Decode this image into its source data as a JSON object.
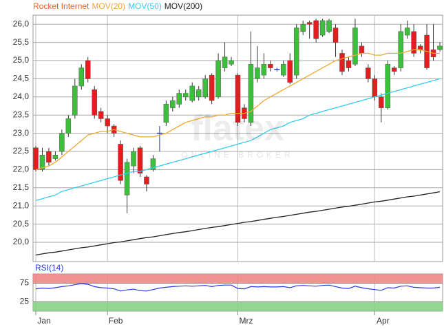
{
  "watermark": {
    "text": "flatex",
    "subtitle": "ONLINE BROKER"
  },
  "chart_data": [
    {
      "type": "candlestick",
      "categories": [
        "Jan",
        null,
        null,
        null,
        null,
        null,
        null,
        null,
        null,
        null,
        null,
        "Feb",
        null,
        null,
        null,
        null,
        null,
        null,
        null,
        null,
        null,
        null,
        null,
        null,
        null,
        null,
        null,
        null,
        null,
        null,
        null,
        "Mrz",
        null,
        null,
        null,
        null,
        null,
        null,
        null,
        null,
        null,
        null,
        null,
        null,
        null,
        null,
        null,
        null,
        null,
        null,
        null,
        null,
        "Apr",
        null,
        null,
        null,
        null,
        null,
        null,
        null,
        null,
        null,
        null
      ],
      "series": [
        {
          "name": "Rocket Internet",
          "color": "#e8642a",
          "up_color": "#3cc03c",
          "down_color": "#e41e1e",
          "flat_color": "#2233cc",
          "open": [
            22.6,
            22.0,
            22.5,
            22.3,
            22.5,
            23.0,
            23.5,
            24.3,
            25.0,
            24.2,
            23.6,
            23.4,
            23.2,
            22.7,
            21.3,
            22.1,
            22.6,
            21.8,
            22.0,
            23.0,
            23.3,
            23.7,
            23.8,
            24.0,
            23.9,
            24.0,
            24.0,
            24.6,
            24.0,
            24.8,
            24.9,
            24.6,
            23.7,
            23.3,
            24.5,
            24.6,
            24.9,
            24.75,
            24.6,
            25.0,
            24.6,
            25.8,
            26.05,
            26.1,
            25.7,
            25.8,
            25.9,
            25.2,
            25.0,
            24.9,
            25.4,
            24.8,
            24.5,
            24.0,
            23.7,
            24.8,
            24.8,
            25.7,
            25.8,
            25.4,
            25.7,
            25.3,
            25.3
          ],
          "high": [
            22.65,
            22.6,
            22.6,
            22.5,
            23.1,
            23.5,
            24.5,
            24.9,
            25.1,
            24.3,
            23.7,
            23.5,
            23.25,
            22.8,
            22.3,
            22.6,
            22.65,
            21.85,
            22.4,
            23.2,
            23.9,
            24.0,
            24.2,
            24.2,
            24.4,
            24.3,
            24.6,
            24.65,
            25.2,
            25.5,
            25.1,
            24.65,
            23.8,
            25.8,
            25.4,
            25.2,
            25.0,
            24.8,
            25.0,
            25.2,
            26.0,
            26.1,
            26.1,
            26.15,
            26.15,
            26.15,
            26.0,
            25.3,
            25.1,
            26.15,
            25.5,
            24.9,
            24.6,
            24.1,
            25.0,
            24.85,
            26.0,
            26.1,
            26.0,
            25.45,
            26.0,
            26.0,
            25.5
          ],
          "low": [
            21.95,
            21.95,
            22.1,
            22.25,
            22.4,
            22.9,
            23.4,
            24.2,
            24.4,
            23.4,
            23.3,
            23.0,
            22.9,
            21.6,
            20.8,
            21.9,
            21.8,
            21.4,
            21.95,
            22.5,
            23.2,
            23.6,
            23.7,
            23.9,
            23.85,
            23.9,
            23.95,
            23.8,
            23.95,
            24.7,
            24.85,
            23.2,
            23.3,
            23.2,
            24.4,
            24.5,
            24.7,
            24.7,
            24.55,
            24.35,
            24.5,
            25.7,
            25.6,
            25.5,
            25.65,
            25.75,
            25.1,
            24.6,
            24.7,
            24.85,
            25.1,
            24.4,
            23.9,
            23.3,
            23.65,
            24.6,
            24.7,
            25.6,
            25.1,
            25.2,
            24.75,
            25.0,
            25.25
          ],
          "close": [
            22.0,
            22.4,
            22.2,
            22.4,
            23.0,
            23.4,
            24.3,
            24.8,
            24.5,
            23.5,
            23.4,
            23.2,
            23.0,
            21.7,
            22.2,
            22.5,
            21.9,
            21.6,
            22.3,
            23.0,
            23.8,
            23.9,
            24.1,
            24.1,
            24.3,
            24.2,
            24.5,
            23.9,
            25.0,
            25.1,
            25.0,
            23.3,
            23.4,
            24.9,
            24.8,
            24.9,
            24.8,
            24.75,
            24.9,
            24.4,
            25.9,
            26.0,
            26.0,
            25.6,
            26.1,
            26.1,
            25.5,
            24.7,
            24.8,
            25.9,
            25.2,
            24.5,
            24.0,
            23.7,
            24.9,
            24.7,
            25.8,
            25.9,
            25.2,
            25.3,
            24.8,
            25.1,
            25.4
          ]
        },
        {
          "name": "MOV(20)",
          "type": "line",
          "color": "#f0a830",
          "values": [
            22.0,
            22.05,
            22.1,
            22.2,
            22.35,
            22.5,
            22.65,
            22.8,
            22.95,
            23.0,
            23.05,
            23.05,
            23.1,
            23.05,
            23.0,
            22.95,
            22.9,
            22.9,
            22.9,
            22.95,
            23.0,
            23.1,
            23.2,
            23.3,
            23.35,
            23.4,
            23.45,
            23.45,
            23.5,
            23.5,
            23.55,
            23.55,
            23.55,
            23.6,
            23.75,
            23.9,
            24.0,
            24.1,
            24.2,
            24.3,
            24.4,
            24.5,
            24.6,
            24.7,
            24.8,
            24.9,
            25.0,
            25.05,
            25.1,
            25.15,
            25.2,
            25.2,
            25.15,
            25.15,
            25.2,
            25.2,
            25.2,
            25.25,
            25.3,
            25.3,
            25.25,
            25.2,
            25.2
          ]
        },
        {
          "name": "MOV(50)",
          "type": "line",
          "color": "#33ccee",
          "values": [
            21.15,
            21.2,
            21.25,
            21.3,
            21.4,
            21.45,
            21.5,
            21.55,
            21.6,
            21.65,
            21.7,
            21.75,
            21.8,
            21.85,
            21.9,
            21.95,
            21.95,
            22.0,
            22.05,
            22.1,
            22.15,
            22.2,
            22.25,
            22.3,
            22.35,
            22.4,
            22.45,
            22.5,
            22.55,
            22.6,
            22.65,
            22.7,
            22.75,
            22.8,
            22.9,
            23.0,
            23.1,
            23.15,
            23.2,
            23.3,
            23.35,
            23.4,
            23.5,
            23.55,
            23.6,
            23.65,
            23.7,
            23.75,
            23.8,
            23.85,
            23.9,
            23.95,
            24.0,
            24.05,
            24.1,
            24.15,
            24.2,
            24.25,
            24.3,
            24.35,
            24.4,
            24.45,
            24.5
          ]
        },
        {
          "name": "MOV(200)",
          "type": "line",
          "color": "#222222",
          "values": [
            19.65,
            19.68,
            19.71,
            19.73,
            19.76,
            19.79,
            19.82,
            19.85,
            19.87,
            19.9,
            19.93,
            19.96,
            19.99,
            20.01,
            20.04,
            20.07,
            20.1,
            20.13,
            20.15,
            20.18,
            20.21,
            20.24,
            20.27,
            20.29,
            20.32,
            20.35,
            20.38,
            20.41,
            20.43,
            20.46,
            20.49,
            20.52,
            20.55,
            20.57,
            20.6,
            20.63,
            20.66,
            20.69,
            20.71,
            20.74,
            20.77,
            20.8,
            20.83,
            20.85,
            20.88,
            20.91,
            20.94,
            20.97,
            20.99,
            21.02,
            21.05,
            21.08,
            21.11,
            21.13,
            21.16,
            21.19,
            21.22,
            21.25,
            21.27,
            21.3,
            21.33,
            21.36,
            21.39
          ]
        }
      ],
      "ylim": [
        19.47,
        26.25
      ],
      "yticks": [
        {
          "value": 20,
          "label": "20,0"
        },
        {
          "value": 20.5,
          "label": "20,5"
        },
        {
          "value": 21,
          "label": "21,0"
        },
        {
          "value": 21.5,
          "label": "21,5"
        },
        {
          "value": 22,
          "label": "22,0"
        },
        {
          "value": 22.5,
          "label": "22,5"
        },
        {
          "value": 23,
          "label": "23,0"
        },
        {
          "value": 23.5,
          "label": "23,5"
        },
        {
          "value": 24,
          "label": "24,0"
        },
        {
          "value": 24.5,
          "label": "24,5"
        },
        {
          "value": 25,
          "label": "25,0"
        },
        {
          "value": 25.5,
          "label": "25,5"
        },
        {
          "value": 26,
          "label": "26,0"
        }
      ],
      "grid": true
    },
    {
      "type": "line",
      "title": "RSI(14)",
      "series": [
        {
          "color": "#2a3adc",
          "values": [
            60,
            62,
            61,
            63,
            66,
            68,
            71,
            74,
            72,
            66,
            63,
            62,
            60,
            54,
            57,
            59,
            55,
            54,
            58,
            62,
            64,
            66,
            67,
            68,
            67,
            68,
            69,
            66,
            69,
            70,
            70,
            61,
            60,
            66,
            65,
            66,
            65,
            65,
            66,
            63,
            68,
            69,
            68,
            67,
            69,
            70,
            66,
            62,
            61,
            67,
            63,
            60,
            58,
            56,
            63,
            62,
            67,
            68,
            64,
            63,
            62,
            62,
            64
          ]
        }
      ],
      "ylim": [
        0,
        100
      ],
      "yticks": [
        25,
        75
      ],
      "bands": [
        {
          "from": 75,
          "to": 100,
          "color": "#f08080"
        },
        {
          "from": 0,
          "to": 25,
          "color": "#80d080"
        }
      ]
    }
  ]
}
